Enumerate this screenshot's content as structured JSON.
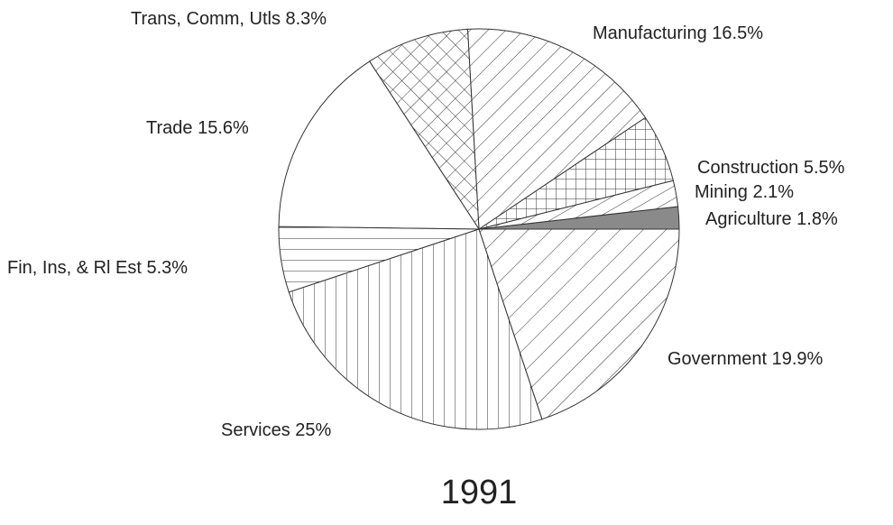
{
  "chart_data": {
    "type": "pie",
    "title": "1991",
    "categories": [
      "Agriculture",
      "Mining",
      "Construction",
      "Manufacturing",
      "Trans, Comm, Utls",
      "Trade",
      "Fin, Ins, & Rl Est",
      "Services",
      "Government"
    ],
    "values": [
      1.8,
      2.1,
      5.5,
      16.5,
      8.3,
      15.6,
      5.3,
      25,
      19.9
    ],
    "value_labels": [
      "1.8%",
      "2.1%",
      "5.5%",
      "16.5%",
      "8.3%",
      "15.6%",
      "5.3%",
      "25%",
      "19.9%"
    ]
  }
}
